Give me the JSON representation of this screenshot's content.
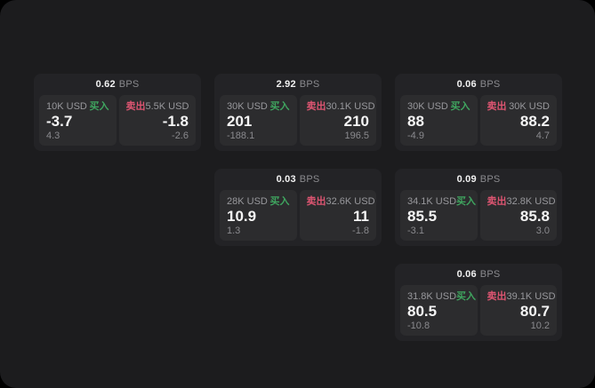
{
  "labels": {
    "bps_unit": "BPS",
    "buy": "买入",
    "sell": "卖出"
  },
  "colors": {
    "buy_green": "#3fa55f",
    "sell_red": "#dd5571",
    "panel_bg": "#1c1c1e",
    "card_bg": "#232326",
    "pane_bg": "#2c2c2e"
  },
  "cards": [
    {
      "bps": "0.62",
      "grid": {
        "row": 1,
        "col": 1
      },
      "buy": {
        "amount": "10K USD",
        "value": "-3.7",
        "sub": "4.3"
      },
      "sell": {
        "amount": "5.5K USD",
        "value": "-1.8",
        "sub": "-2.6"
      }
    },
    {
      "bps": "2.92",
      "grid": {
        "row": 1,
        "col": 2
      },
      "buy": {
        "amount": "30K USD",
        "value": "201",
        "sub": "-188.1"
      },
      "sell": {
        "amount": "30.1K USD",
        "value": "210",
        "sub": "196.5"
      }
    },
    {
      "bps": "0.06",
      "grid": {
        "row": 1,
        "col": 3
      },
      "buy": {
        "amount": "30K USD",
        "value": "88",
        "sub": "-4.9"
      },
      "sell": {
        "amount": "30K USD",
        "value": "88.2",
        "sub": "4.7"
      }
    },
    {
      "bps": "0.03",
      "grid": {
        "row": 2,
        "col": 2
      },
      "buy": {
        "amount": "28K USD",
        "value": "10.9",
        "sub": "1.3"
      },
      "sell": {
        "amount": "32.6K USD",
        "value": "11",
        "sub": "-1.8"
      }
    },
    {
      "bps": "0.09",
      "grid": {
        "row": 2,
        "col": 3
      },
      "buy": {
        "amount": "34.1K USD",
        "value": "85.5",
        "sub": "-3.1"
      },
      "sell": {
        "amount": "32.8K USD",
        "value": "85.8",
        "sub": "3.0"
      }
    },
    {
      "bps": "0.06",
      "grid": {
        "row": 3,
        "col": 3
      },
      "buy": {
        "amount": "31.8K USD",
        "value": "80.5",
        "sub": "-10.8"
      },
      "sell": {
        "amount": "39.1K USD",
        "value": "80.7",
        "sub": "10.2"
      }
    }
  ]
}
